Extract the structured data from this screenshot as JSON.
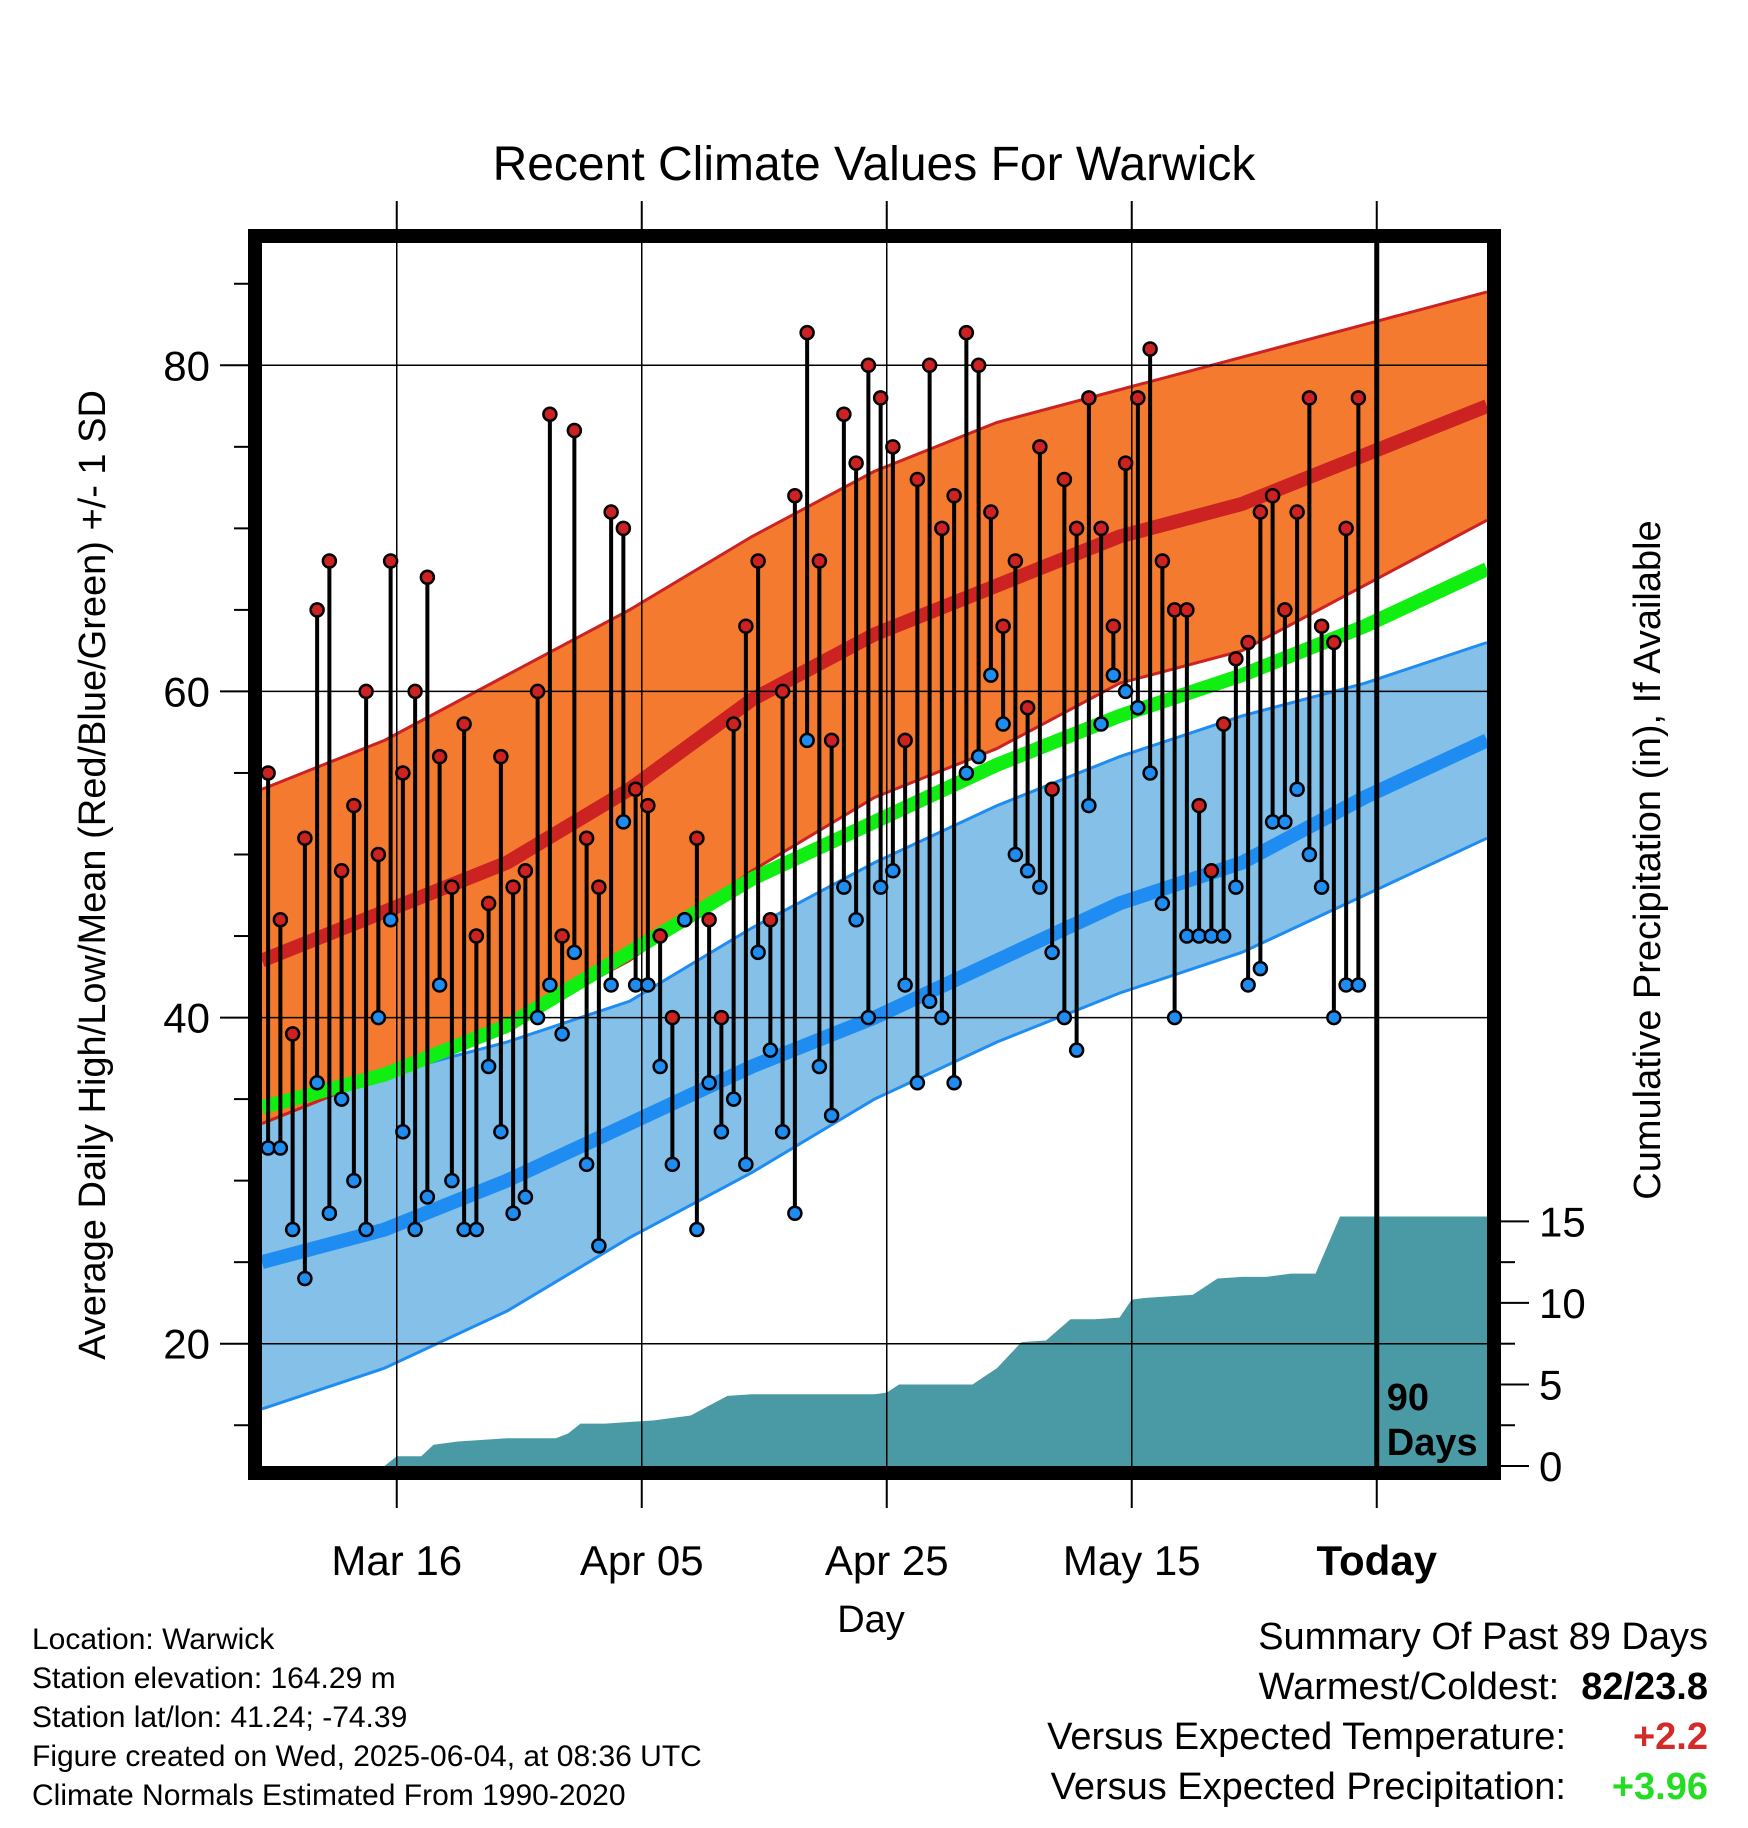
{
  "chart_data": {
    "type": "line",
    "title": "Recent Climate Values For Warwick",
    "xlabel": "Day",
    "ylabel": "Average Daily High/Low/Mean (Red/Blue/Green) +/- 1 SD",
    "ylabel_right": "Cumulative Precipitation (in), If Available",
    "x_tick_labels": [
      "Mar 16",
      "Apr 05",
      "Apr 25",
      "May 15",
      "Today"
    ],
    "x_tick_days": [
      11,
      31,
      51,
      71,
      91
    ],
    "xlim": [
      0,
      100
    ],
    "ylim": [
      12.5,
      87.5
    ],
    "y_ticks": [
      20,
      40,
      60,
      80
    ],
    "y2lim": [
      0,
      15
    ],
    "y2_ticks": [
      0,
      5,
      10,
      15
    ],
    "grid": true,
    "today_marker": {
      "label_line1": "90",
      "label_line2": "Days"
    },
    "colors": {
      "high_band": "#f47a30",
      "high_mean": "#cc2222",
      "low_band": "#84c0e8",
      "low_mean": "#1e8cf0",
      "mean": "#11ee11",
      "precip": "#4a9aa5",
      "high_dot": "#cc2222",
      "low_dot": "#1e8cf0"
    },
    "normals": {
      "x": [
        0,
        10,
        20,
        30,
        40,
        50,
        60,
        70,
        80,
        90,
        100
      ],
      "high_mean": [
        43.5,
        46.5,
        49.5,
        54.0,
        59.5,
        63.5,
        66.5,
        69.5,
        71.5,
        74.5,
        77.5
      ],
      "high_upper": [
        54.0,
        57.0,
        61.0,
        65.0,
        69.5,
        73.5,
        76.5,
        78.5,
        80.5,
        82.5,
        84.5
      ],
      "high_lower": [
        33.5,
        36.5,
        39.5,
        43.5,
        49.0,
        53.5,
        56.5,
        60.5,
        62.5,
        66.5,
        70.5
      ],
      "low_mean": [
        25.0,
        27.0,
        30.0,
        33.5,
        37.0,
        40.0,
        43.5,
        47.0,
        49.5,
        53.5,
        57.0
      ],
      "low_upper": [
        35.5,
        36.5,
        38.5,
        41.0,
        45.5,
        49.5,
        53.0,
        56.0,
        58.5,
        60.5,
        63.0
      ],
      "low_lower": [
        16.0,
        18.5,
        22.0,
        26.5,
        30.5,
        35.0,
        38.5,
        41.5,
        44.0,
        47.5,
        51.0
      ],
      "mean": [
        34.5,
        36.5,
        39.5,
        44.0,
        48.5,
        52.0,
        55.5,
        58.5,
        61.0,
        64.0,
        67.5
      ]
    },
    "daily": {
      "day": [
        0,
        1,
        2,
        3,
        4,
        5,
        6,
        7,
        8,
        9,
        10,
        11,
        12,
        13,
        14,
        15,
        16,
        17,
        18,
        19,
        20,
        21,
        22,
        23,
        24,
        25,
        26,
        27,
        28,
        29,
        30,
        31,
        32,
        33,
        34,
        35,
        36,
        37,
        38,
        39,
        40,
        41,
        42,
        43,
        44,
        45,
        46,
        47,
        48,
        49,
        50,
        51,
        52,
        53,
        54,
        55,
        56,
        57,
        58,
        59,
        60,
        61,
        62,
        63,
        64,
        65,
        66,
        67,
        68,
        69,
        70,
        71,
        72,
        73,
        74,
        75,
        76,
        77,
        78,
        79,
        80,
        81,
        82,
        83,
        84,
        85,
        86,
        87,
        88,
        89
      ],
      "high": [
        55,
        46,
        39,
        51,
        65,
        68,
        49,
        53,
        60,
        50,
        68,
        55,
        60,
        67,
        56,
        48,
        58,
        45,
        47,
        56,
        48,
        49,
        60,
        77,
        45,
        76,
        51,
        48,
        71,
        70,
        54,
        53,
        45,
        40,
        46,
        51,
        46,
        40,
        58,
        64,
        68,
        46,
        60,
        72,
        82,
        68,
        57,
        77,
        74,
        80,
        78,
        75,
        57,
        73,
        80,
        70,
        72,
        82,
        80,
        71,
        64,
        68,
        59,
        75,
        54,
        73,
        70,
        78,
        70,
        64,
        74,
        78,
        81,
        68,
        65,
        65,
        53,
        49,
        58,
        62,
        63,
        71,
        72,
        65,
        71,
        78,
        64,
        63,
        70,
        78
      ],
      "low": [
        32,
        32,
        27,
        24,
        36,
        28,
        35,
        30,
        27,
        40,
        46,
        33,
        27,
        29,
        42,
        30,
        27,
        27,
        37,
        33,
        28,
        29,
        40,
        42,
        39,
        44,
        31,
        26,
        42,
        52,
        42,
        42,
        37,
        31,
        46,
        27,
        36,
        33,
        35,
        31,
        44,
        38,
        33,
        28,
        57,
        37,
        34,
        48,
        46,
        40,
        48,
        49,
        42,
        36,
        41,
        40,
        36,
        55,
        56,
        61,
        58,
        50,
        49,
        48,
        44,
        40,
        38,
        53,
        58,
        61,
        60,
        59,
        55,
        47,
        40,
        45,
        45,
        45,
        45,
        48,
        42,
        43,
        52,
        52,
        54,
        50,
        48,
        40,
        42,
        42
      ]
    },
    "precip": {
      "x": [
        10,
        11,
        13,
        14,
        16,
        18,
        20,
        22,
        24,
        25,
        26,
        28,
        30,
        32,
        34,
        35,
        36,
        38,
        40,
        42,
        44,
        46,
        48,
        50,
        51,
        52,
        54,
        56,
        58,
        60,
        62,
        64,
        66,
        68,
        70,
        71,
        72,
        74,
        76,
        78,
        80,
        82,
        84,
        86,
        88,
        90,
        100
      ],
      "cum": [
        0,
        0.6,
        0.6,
        1.3,
        1.5,
        1.6,
        1.7,
        1.7,
        1.7,
        2.0,
        2.6,
        2.6,
        2.7,
        2.8,
        3.0,
        3.1,
        3.5,
        4.3,
        4.4,
        4.4,
        4.4,
        4.4,
        4.4,
        4.4,
        4.5,
        5.0,
        5.0,
        5.0,
        5.0,
        6.0,
        7.6,
        7.7,
        9.0,
        9.0,
        9.1,
        10.2,
        10.3,
        10.4,
        10.5,
        11.5,
        11.6,
        11.6,
        11.8,
        11.8,
        15.3,
        15.3,
        15.3
      ]
    }
  },
  "info": {
    "location": "Location: Warwick",
    "elevation": "Station elevation: 164.29 m",
    "latlon": "Station lat/lon: 41.24; -74.39",
    "created": "Figure created on Wed, 2025-06-04, at 08:36 UTC",
    "normals": "Climate Normals Estimated From 1990-2020"
  },
  "summary": {
    "heading": "Summary Of Past 89 Days",
    "warm_cold_label": "Warmest/Coldest:",
    "warm_cold_value": "82/23.8",
    "temp_label": "Versus Expected Temperature:",
    "temp_value": "+2.2",
    "temp_color": "#d42a2a",
    "precip_label": "Versus Expected Precipitation:",
    "precip_value": "+3.96",
    "precip_color": "#22dd22"
  }
}
